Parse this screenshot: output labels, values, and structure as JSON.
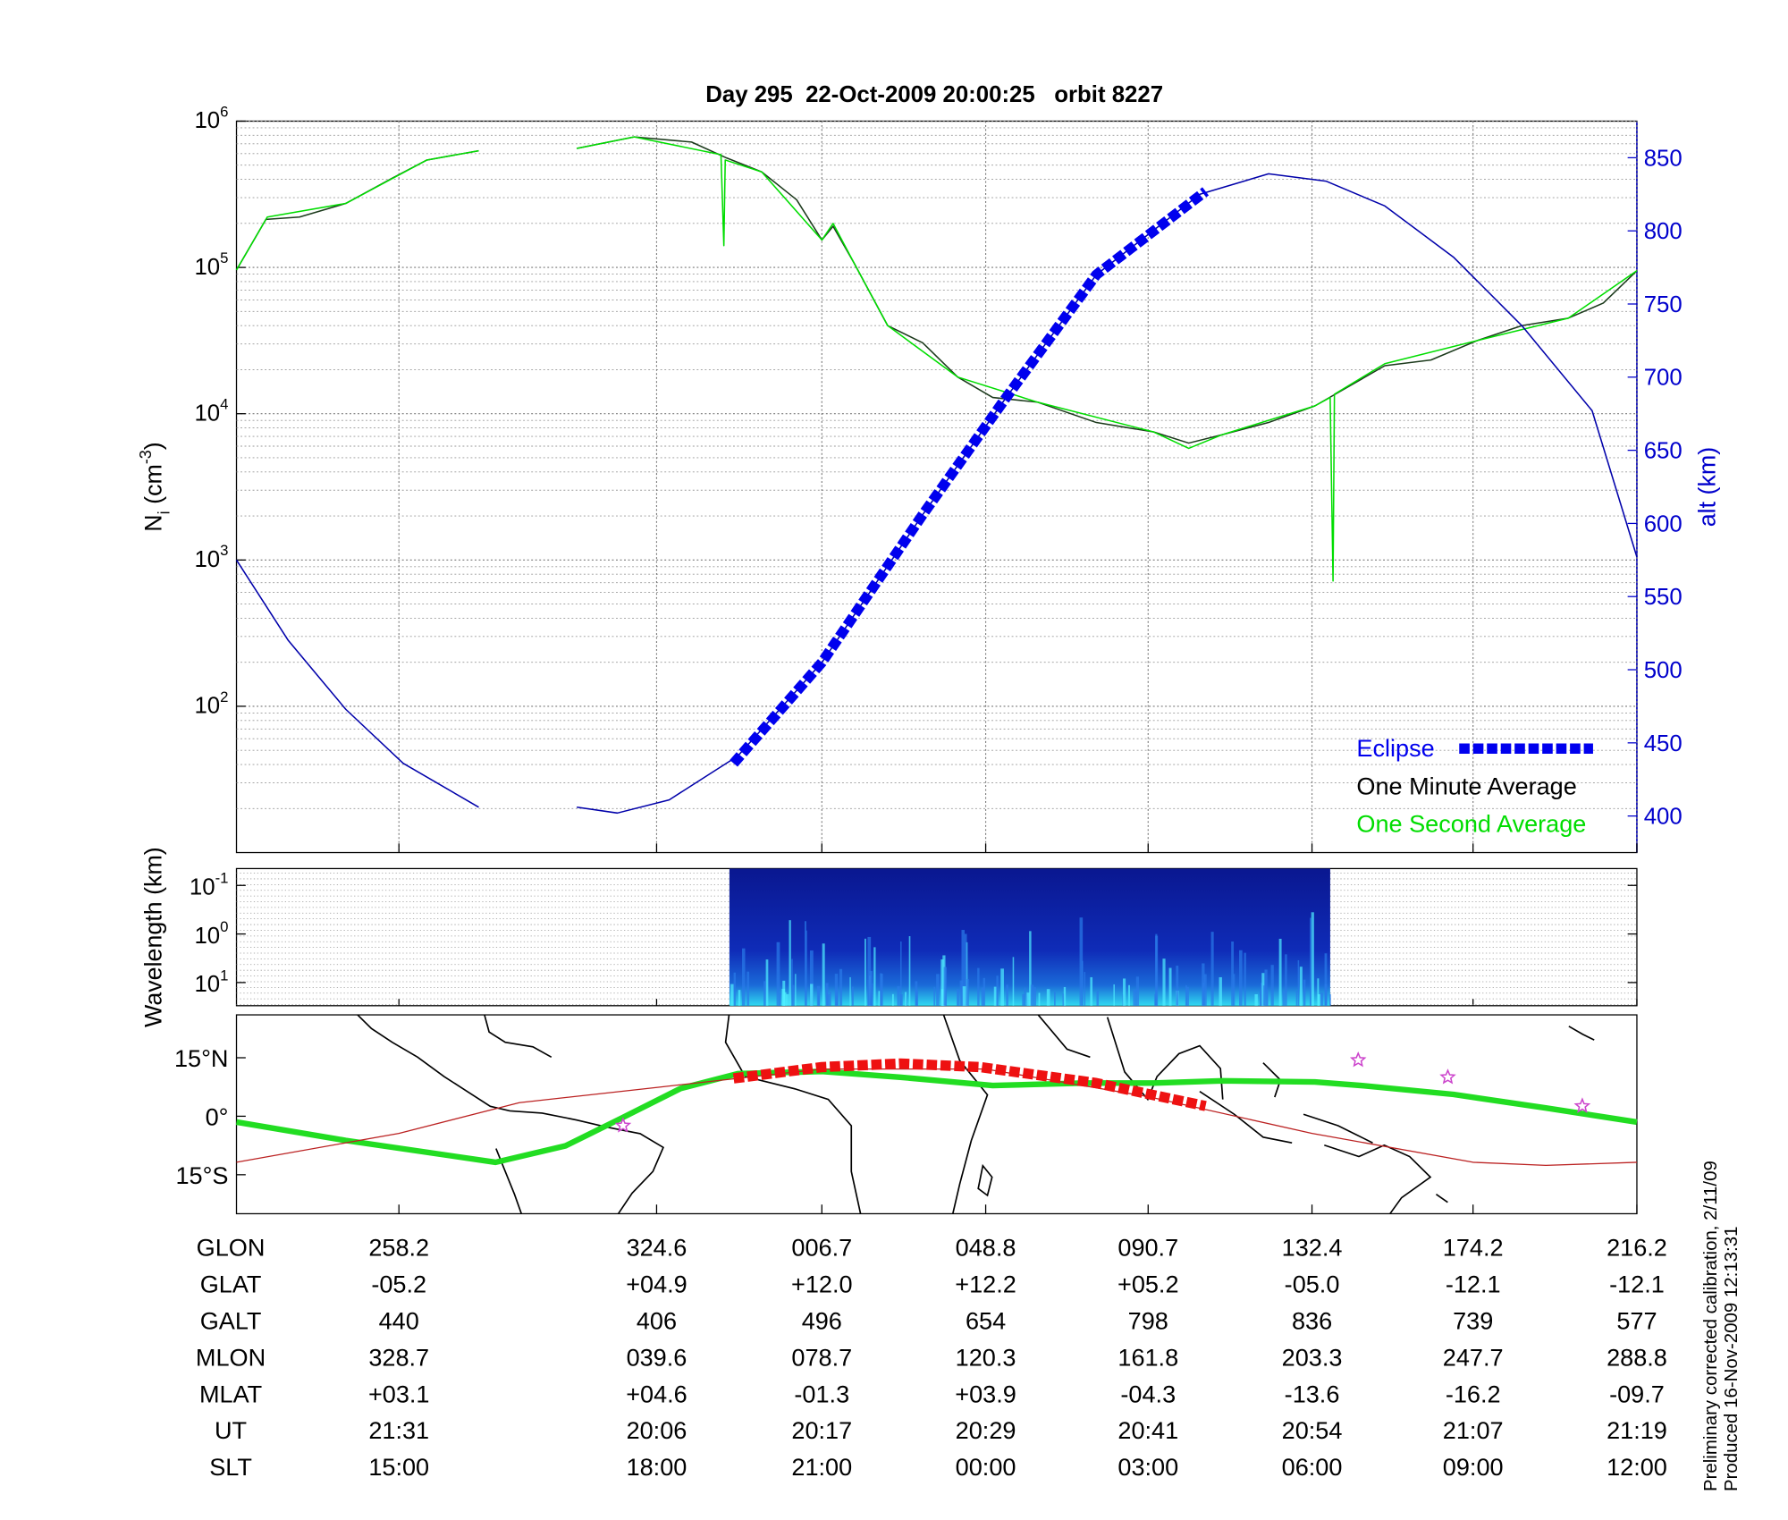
{
  "chart_data": [
    {
      "type": "line",
      "title": "Day 295  22-Oct-2009 20:00:25   orbit 8227",
      "ylabel": {
        "text": "N",
        "subscript": "i",
        "unit": " (cm",
        "unit_exponent": "-3",
        "close": ")"
      },
      "y2label": "alt (km)",
      "log_y": true,
      "grid": true,
      "legend": "lower right",
      "xlim": [
        0,
        100
      ],
      "xticks": [
        11.6,
        30.0,
        41.8,
        53.5,
        65.1,
        76.8,
        88.3,
        100
      ],
      "ylim": [
        10,
        1000000
      ],
      "yticks": [
        {
          "value": 100,
          "label": "10",
          "exponent": "2"
        },
        {
          "value": 1000,
          "label": "10",
          "exponent": "3"
        },
        {
          "value": 10000,
          "label": "10",
          "exponent": "4"
        },
        {
          "value": 100000,
          "label": "10",
          "exponent": "5"
        },
        {
          "value": 1000000,
          "label": "10",
          "exponent": "6"
        }
      ],
      "y2lim": [
        375,
        875
      ],
      "y2ticks": [
        400,
        450,
        500,
        550,
        600,
        650,
        700,
        750,
        800,
        850
      ],
      "series": [
        {
          "name": "One Minute Average",
          "color": "#1c3a1c",
          "linestyle": "solid",
          "x": [
            0,
            2.1,
            4.5,
            7.8,
            11.1,
            13.6,
            17.3,
            null,
            24.3,
            28.4,
            32.5,
            35.0,
            37.5,
            40.0,
            41.8,
            42.6,
            44.1,
            46.5,
            49.0,
            51.5,
            54.0,
            57.2,
            61.4,
            65.5,
            68.0,
            70.4,
            73.7,
            77.0,
            82.0,
            85.3,
            88.6,
            91.8,
            95.1,
            97.6,
            100
          ],
          "values": [
            96000,
            213000,
            221000,
            274000,
            407000,
            542000,
            627000,
            null,
            650000,
            780000,
            720000,
            560000,
            450000,
            290000,
            154000,
            191000,
            107000,
            40000,
            30500,
            17800,
            12900,
            12000,
            8700,
            7500,
            6300,
            7200,
            8700,
            11300,
            21300,
            23300,
            31600,
            40000,
            45000,
            57000,
            95000
          ]
        },
        {
          "name": "One Second Average",
          "color": "#00dd00",
          "linestyle": "solid",
          "x": [
            0,
            2.2,
            7.8,
            13.6,
            17.3,
            null,
            24.3,
            28.4,
            34.6,
            34.8,
            34.9,
            37.5,
            41.8,
            42.6,
            44.1,
            46.5,
            51.5,
            57.2,
            65.5,
            68.0,
            70.4,
            77.0,
            78.1,
            78.3,
            78.4,
            82.0,
            88.6,
            95.1,
            100
          ],
          "values": [
            96000,
            221000,
            274000,
            542000,
            627000,
            null,
            650000,
            780000,
            590000,
            141000,
            542000,
            450000,
            154000,
            200000,
            107000,
            40000,
            17800,
            12000,
            7500,
            5800,
            7200,
            11300,
            12900,
            720,
            13600,
            22000,
            31600,
            45000,
            95000
          ]
        },
        {
          "color": "#0000aa",
          "linestyle": "solid",
          "axis": "y2",
          "x": [
            0,
            3.7,
            7.8,
            11.9,
            17.3,
            null,
            24.3,
            27.2,
            30.9,
            35.8,
            41.8,
            49.0,
            54.8,
            61.4,
            68.8,
            73.7,
            77.8,
            82.0,
            86.9,
            91.8,
            96.8,
            100
          ],
          "values": [
            575,
            520,
            473,
            436,
            406,
            null,
            406,
            402,
            411,
            441,
            505,
            606,
            684,
            770,
            825,
            839,
            834,
            817,
            782,
            735,
            677,
            577
          ]
        },
        {
          "name": "Eclipse",
          "color": "#0000ee",
          "linestyle": "dashed",
          "axis": "y2",
          "x": [
            35.5,
            41.8,
            49.0,
            54.8,
            61.4,
            69.2
          ],
          "values": [
            436,
            505,
            606,
            684,
            770,
            827
          ]
        }
      ]
    },
    {
      "type": "spectrogram",
      "ylabel": "Wavelength (km)",
      "log_y": true,
      "inverted_y": true,
      "ylim": [
        0.045,
        30
      ],
      "yticks": [
        {
          "value": 0.1,
          "label": "10",
          "exponent": "-1"
        },
        {
          "value": 1,
          "label": "10",
          "exponent": "0"
        },
        {
          "value": 10,
          "label": "10",
          "exponent": "1"
        }
      ],
      "extent": [
        35.2,
        78.1
      ]
    },
    {
      "type": "map",
      "ylim": [
        -25,
        26
      ],
      "yticks": [
        {
          "value": 15,
          "label": "15°N"
        },
        {
          "value": 0,
          "label": "0°"
        },
        {
          "value": -15,
          "label": "15°S"
        }
      ],
      "series": [
        {
          "color": "#22dd22",
          "linestyle": "thick",
          "x": [
            0,
            7.8,
            18.5,
            23.5,
            27.6,
            31.7,
            35.8,
            41.8,
            47.4,
            54.0,
            60.5,
            65.5,
            70.4,
            77.0,
            80.3,
            86.9,
            93.5,
            100
          ],
          "values": [
            -1.5,
            -6.2,
            -11.8,
            -7.6,
            -0.3,
            7.1,
            10.9,
            11.5,
            10.0,
            7.9,
            8.5,
            8.5,
            9.1,
            8.8,
            7.9,
            5.6,
            2.1,
            -1.5
          ]
        },
        {
          "color": "#bb2222",
          "linestyle": "thin",
          "x": [
            0,
            11.6,
            20.2,
            30.0,
            41.8,
            53.5,
            65.1,
            76.8,
            88.3,
            93.5,
            100
          ],
          "values": [
            -11.8,
            -4.4,
            3.5,
            7.4,
            12.1,
            12.1,
            5.0,
            -4.4,
            -11.8,
            -12.6,
            -11.8
          ]
        },
        {
          "color": "#ee1111",
          "linestyle": "dashed",
          "x": [
            35.5,
            41.8,
            47.4,
            53.1,
            61.4,
            69.2
          ],
          "values": [
            9.7,
            12.6,
            13.5,
            12.6,
            8.5,
            2.6
          ]
        }
      ],
      "markers": {
        "color": "#cc44cc",
        "x": [
          27.6,
          80.1,
          86.5,
          96.1
        ],
        "values": [
          -2.4,
          14.4,
          10.0,
          2.6
        ]
      }
    }
  ],
  "table": {
    "rows": [
      [
        "GLON",
        "258.2",
        "324.6",
        "006.7",
        "048.8",
        "090.7",
        "132.4",
        "174.2",
        "216.2"
      ],
      [
        "GLAT",
        "-05.2",
        "+04.9",
        "+12.0",
        "+12.2",
        "+05.2",
        "-05.0",
        "-12.1",
        "-12.1"
      ],
      [
        "GALT",
        "440",
        "406",
        "496",
        "654",
        "798",
        "836",
        "739",
        "577"
      ],
      [
        "MLON",
        "328.7",
        "039.6",
        "078.7",
        "120.3",
        "161.8",
        "203.3",
        "247.7",
        "288.8"
      ],
      [
        "MLAT",
        "+03.1",
        "+04.6",
        "-01.3",
        "+03.9",
        "-04.3",
        "-13.6",
        "-16.2",
        "-09.7"
      ],
      [
        "UT",
        "21:31",
        "20:06",
        "20:17",
        "20:29",
        "20:41",
        "20:54",
        "21:07",
        "21:19"
      ],
      [
        "SLT",
        "15:00",
        "18:00",
        "21:00",
        "00:00",
        "03:00",
        "06:00",
        "09:00",
        "12:00"
      ]
    ]
  },
  "notes": [
    "Preliminary corrected calibration, 2/11/09",
    "Produced 16-Nov-2009 12:13:31"
  ]
}
